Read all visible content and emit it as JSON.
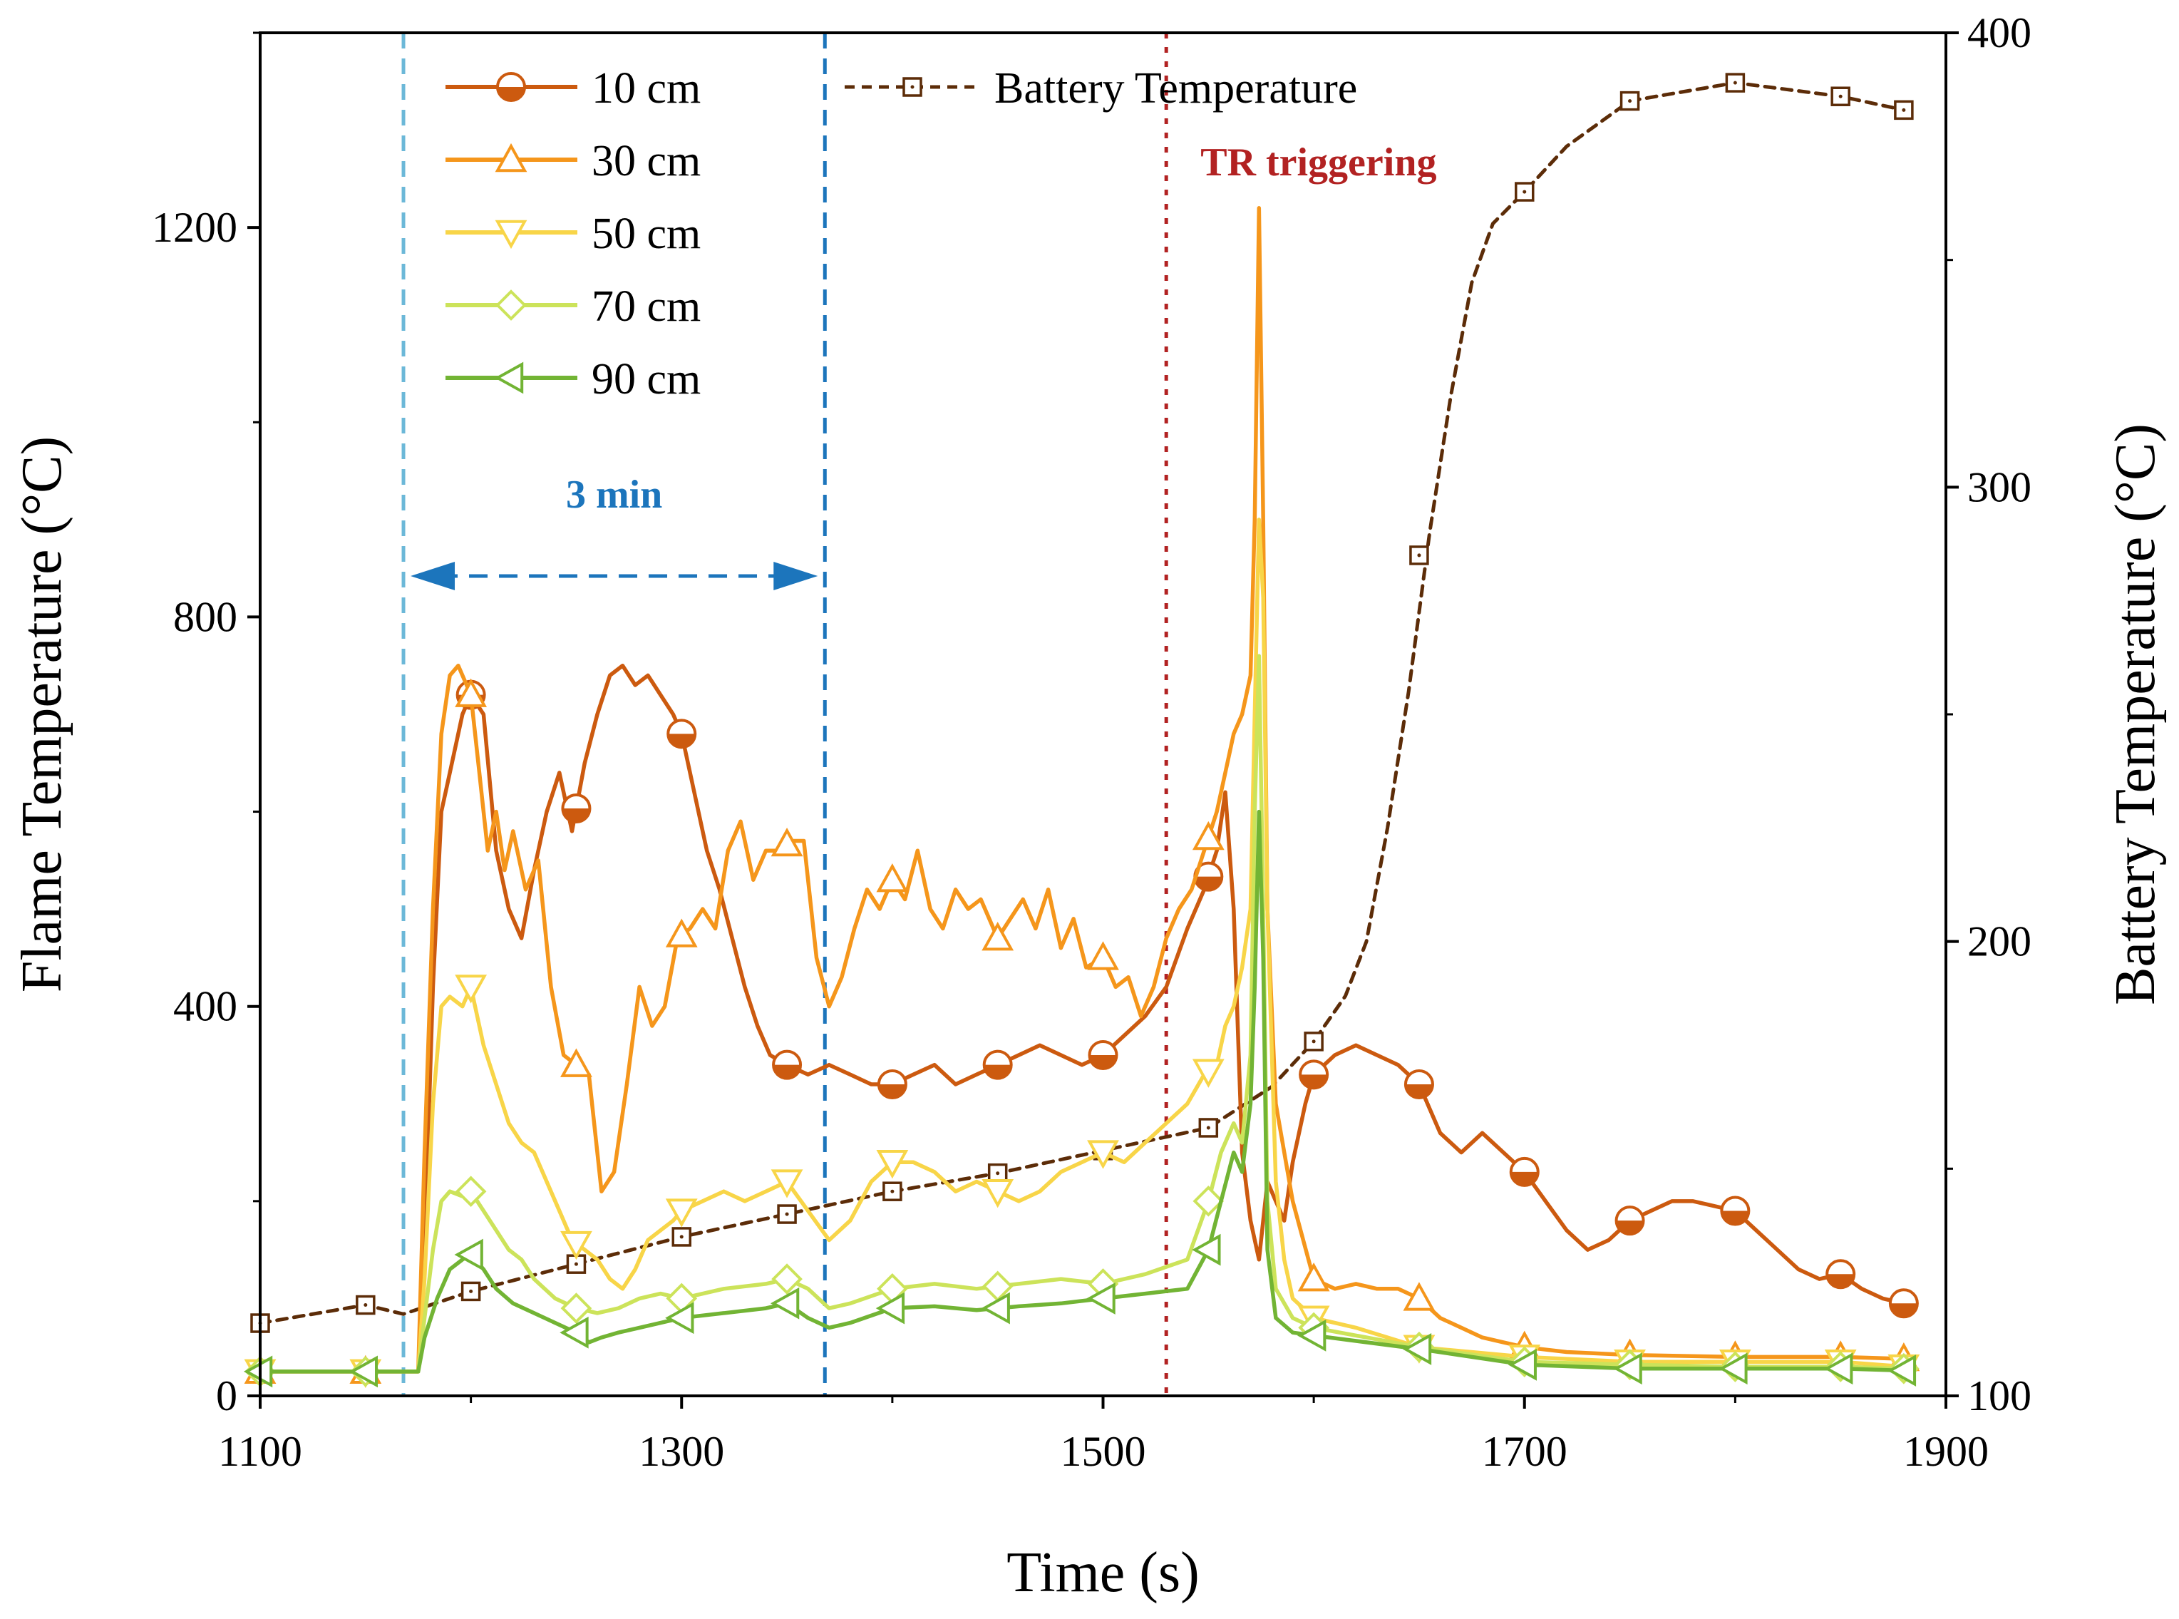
{
  "chart_data": {
    "type": "line",
    "xlabel": "Time (s)",
    "ylabel_left": "Flame Temperature (°C)",
    "ylabel_right": "Battery Temperature (°C)",
    "xlim": [
      1100,
      1900
    ],
    "ylim_left": [
      0,
      1400
    ],
    "ylim_right": [
      100,
      400
    ],
    "x_ticks": [
      "1100",
      "1300",
      "1500",
      "1700",
      "1900"
    ],
    "y_left_ticks": [
      "0",
      "400",
      "800",
      "1200"
    ],
    "y_right_ticks": [
      "100",
      "200",
      "300",
      "400"
    ],
    "grid": false,
    "legend_position": "top-left",
    "colors": {
      "s10": "#cc5a0f",
      "s30": "#f5961b",
      "s50": "#f8d548",
      "s70": "#cce35a",
      "s90": "#72b434",
      "battery": "#5c2c08",
      "marker_3min": "#1c75bc",
      "marker_3min_start": "#6cb8d8",
      "tr_line": "#b22222"
    },
    "annotations": {
      "three_min": "3 min",
      "tr_triggering": "TR triggering"
    },
    "interval_3min": [
      1168,
      1368
    ],
    "tr_time": 1530,
    "series": [
      {
        "name": "10 cm",
        "key": "s10",
        "marker": "half-circle",
        "axis": "left",
        "x": [
          1100,
          1140,
          1175,
          1178,
          1182,
          1186,
          1190,
          1196,
          1200,
          1206,
          1212,
          1218,
          1224,
          1230,
          1236,
          1242,
          1248,
          1254,
          1260,
          1266,
          1272,
          1278,
          1284,
          1290,
          1296,
          1300,
          1306,
          1312,
          1318,
          1324,
          1330,
          1336,
          1342,
          1350,
          1360,
          1370,
          1380,
          1390,
          1400,
          1410,
          1420,
          1430,
          1440,
          1450,
          1460,
          1470,
          1480,
          1490,
          1500,
          1510,
          1520,
          1530,
          1540,
          1548,
          1554,
          1558,
          1562,
          1566,
          1570,
          1574,
          1578,
          1582,
          1586,
          1590,
          1596,
          1600,
          1610,
          1620,
          1630,
          1640,
          1650,
          1660,
          1670,
          1680,
          1690,
          1700,
          1710,
          1720,
          1730,
          1740,
          1750,
          1760,
          1770,
          1780,
          1790,
          1800,
          1810,
          1820,
          1830,
          1840,
          1850,
          1860,
          1870,
          1880
        ],
        "y": [
          25,
          25,
          25,
          150,
          420,
          600,
          640,
          700,
          720,
          700,
          560,
          500,
          470,
          540,
          600,
          640,
          580,
          650,
          700,
          740,
          750,
          730,
          740,
          720,
          700,
          680,
          620,
          560,
          520,
          470,
          420,
          380,
          350,
          340,
          330,
          340,
          330,
          320,
          320,
          330,
          340,
          320,
          330,
          340,
          350,
          360,
          350,
          340,
          350,
          370,
          390,
          420,
          480,
          520,
          560,
          620,
          500,
          250,
          180,
          140,
          220,
          200,
          180,
          240,
          300,
          330,
          350,
          360,
          350,
          340,
          320,
          270,
          250,
          270,
          250,
          230,
          200,
          170,
          150,
          160,
          180,
          190,
          200,
          200,
          195,
          190,
          170,
          150,
          130,
          120,
          125,
          110,
          100,
          95
        ],
        "marker_x": [
          1200,
          1250,
          1300,
          1350,
          1400,
          1450,
          1500,
          1550,
          1600,
          1650,
          1700,
          1750,
          1800,
          1850,
          1880
        ]
      },
      {
        "name": "30 cm",
        "key": "s30",
        "marker": "triangle-up",
        "axis": "left",
        "x": [
          1100,
          1140,
          1175,
          1178,
          1182,
          1186,
          1190,
          1194,
          1200,
          1204,
          1208,
          1212,
          1216,
          1220,
          1226,
          1232,
          1238,
          1244,
          1250,
          1256,
          1262,
          1268,
          1274,
          1280,
          1286,
          1292,
          1298,
          1304,
          1310,
          1316,
          1322,
          1328,
          1334,
          1340,
          1346,
          1352,
          1358,
          1364,
          1370,
          1376,
          1382,
          1388,
          1394,
          1400,
          1406,
          1412,
          1418,
          1424,
          1430,
          1436,
          1442,
          1450,
          1456,
          1462,
          1468,
          1474,
          1480,
          1486,
          1492,
          1500,
          1506,
          1512,
          1518,
          1524,
          1530,
          1536,
          1542,
          1548,
          1554,
          1558,
          1562,
          1566,
          1570,
          1572,
          1574,
          1576,
          1578,
          1582,
          1590,
          1600,
          1610,
          1620,
          1630,
          1640,
          1650,
          1660,
          1670,
          1680,
          1690,
          1700,
          1720,
          1750,
          1800,
          1850,
          1880
        ],
        "y": [
          25,
          25,
          25,
          250,
          500,
          680,
          740,
          750,
          720,
          640,
          560,
          600,
          540,
          580,
          520,
          550,
          420,
          350,
          340,
          330,
          210,
          230,
          320,
          420,
          380,
          400,
          470,
          480,
          500,
          480,
          560,
          590,
          530,
          560,
          560,
          570,
          570,
          450,
          400,
          430,
          480,
          520,
          500,
          530,
          510,
          560,
          500,
          480,
          520,
          500,
          510,
          470,
          490,
          510,
          480,
          520,
          460,
          490,
          440,
          450,
          420,
          430,
          390,
          420,
          470,
          500,
          520,
          560,
          600,
          640,
          680,
          700,
          740,
          900,
          1220,
          900,
          500,
          300,
          200,
          120,
          110,
          115,
          110,
          110,
          100,
          80,
          70,
          60,
          55,
          50,
          45,
          42,
          40,
          40,
          38
        ]
      },
      {
        "name": "50 cm",
        "key": "s50",
        "marker": "triangle-down",
        "axis": "left",
        "x": [
          1100,
          1140,
          1175,
          1178,
          1182,
          1186,
          1190,
          1196,
          1200,
          1206,
          1212,
          1218,
          1224,
          1230,
          1236,
          1242,
          1248,
          1254,
          1260,
          1266,
          1272,
          1278,
          1284,
          1290,
          1296,
          1300,
          1310,
          1320,
          1330,
          1340,
          1350,
          1360,
          1370,
          1380,
          1390,
          1400,
          1410,
          1420,
          1430,
          1440,
          1450,
          1460,
          1470,
          1480,
          1490,
          1500,
          1510,
          1520,
          1530,
          1540,
          1548,
          1554,
          1558,
          1562,
          1566,
          1570,
          1572,
          1574,
          1576,
          1578,
          1582,
          1586,
          1590,
          1600,
          1620,
          1650,
          1700,
          1750,
          1800,
          1850,
          1880
        ],
        "y": [
          25,
          25,
          25,
          120,
          300,
          400,
          410,
          400,
          420,
          360,
          320,
          280,
          260,
          250,
          220,
          190,
          160,
          150,
          140,
          120,
          110,
          130,
          160,
          170,
          180,
          190,
          200,
          210,
          200,
          210,
          220,
          190,
          160,
          180,
          220,
          240,
          240,
          230,
          210,
          220,
          210,
          200,
          210,
          230,
          240,
          250,
          240,
          260,
          280,
          300,
          330,
          340,
          380,
          400,
          440,
          500,
          700,
          900,
          820,
          500,
          220,
          140,
          100,
          80,
          70,
          50,
          40,
          35,
          35,
          35,
          30
        ]
      },
      {
        "name": "70 cm",
        "key": "s70",
        "marker": "diamond",
        "axis": "left",
        "x": [
          1100,
          1140,
          1175,
          1178,
          1182,
          1186,
          1190,
          1196,
          1200,
          1206,
          1212,
          1218,
          1224,
          1230,
          1240,
          1250,
          1260,
          1270,
          1280,
          1290,
          1300,
          1320,
          1340,
          1350,
          1360,
          1370,
          1380,
          1400,
          1420,
          1440,
          1460,
          1480,
          1500,
          1520,
          1540,
          1550,
          1556,
          1562,
          1566,
          1570,
          1572,
          1574,
          1576,
          1578,
          1582,
          1590,
          1600,
          1650,
          1700,
          1750,
          1800,
          1850,
          1880
        ],
        "y": [
          25,
          25,
          25,
          80,
          150,
          200,
          210,
          205,
          210,
          190,
          170,
          150,
          140,
          120,
          100,
          90,
          85,
          90,
          100,
          105,
          100,
          110,
          115,
          120,
          110,
          90,
          95,
          110,
          115,
          110,
          115,
          120,
          115,
          125,
          140,
          200,
          250,
          280,
          260,
          350,
          600,
          760,
          500,
          200,
          110,
          80,
          70,
          50,
          35,
          32,
          30,
          30,
          28
        ]
      },
      {
        "name": "90 cm",
        "key": "s90",
        "marker": "triangle-left",
        "axis": "left",
        "x": [
          1100,
          1140,
          1175,
          1178,
          1184,
          1190,
          1196,
          1200,
          1206,
          1212,
          1220,
          1230,
          1240,
          1250,
          1256,
          1262,
          1270,
          1280,
          1290,
          1300,
          1320,
          1340,
          1350,
          1360,
          1370,
          1380,
          1400,
          1420,
          1440,
          1460,
          1480,
          1500,
          1520,
          1540,
          1550,
          1556,
          1562,
          1566,
          1570,
          1572,
          1574,
          1576,
          1578,
          1582,
          1590,
          1600,
          1650,
          1700,
          1750,
          1800,
          1850,
          1880
        ],
        "y": [
          25,
          25,
          25,
          60,
          100,
          130,
          140,
          145,
          130,
          110,
          95,
          85,
          75,
          65,
          55,
          60,
          65,
          70,
          75,
          80,
          85,
          90,
          95,
          80,
          70,
          75,
          90,
          92,
          88,
          92,
          95,
          100,
          105,
          110,
          150,
          200,
          250,
          230,
          300,
          420,
          600,
          450,
          150,
          80,
          65,
          62,
          48,
          32,
          28,
          28,
          28,
          26
        ]
      },
      {
        "name": "Battery Temperature",
        "key": "battery",
        "marker": "square-open",
        "axis": "right",
        "x": [
          1100,
          1150,
          1200,
          1250,
          1300,
          1350,
          1400,
          1450,
          1500,
          1550,
          1600,
          1650,
          1700,
          1750,
          1800,
          1850,
          1880
        ],
        "y": [
          116,
          120,
          123,
          129,
          135,
          140,
          145,
          149,
          154,
          159,
          178,
          285,
          365,
          385,
          389,
          386,
          383
        ],
        "curve_x": [
          1100,
          1150,
          1168,
          1200,
          1250,
          1300,
          1350,
          1400,
          1450,
          1500,
          1550,
          1580,
          1600,
          1615,
          1625,
          1635,
          1645,
          1655,
          1665,
          1675,
          1685,
          1700,
          1720,
          1750,
          1800,
          1850,
          1880
        ],
        "curve_y": [
          116,
          120,
          118,
          123,
          129,
          135,
          140,
          145,
          149,
          154,
          159,
          168,
          178,
          188,
          200,
          225,
          255,
          290,
          320,
          345,
          358,
          365,
          375,
          385,
          389,
          386,
          383
        ]
      }
    ]
  }
}
